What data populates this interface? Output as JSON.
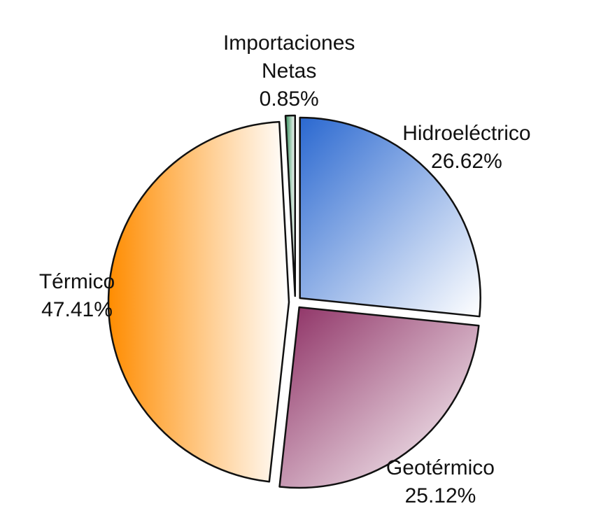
{
  "chart_data": {
    "type": "pie",
    "categories": [
      "Hidroeléctrico",
      "Geotérmico",
      "Térmico",
      "Importaciones Netas"
    ],
    "values": [
      26.62,
      25.12,
      47.41,
      0.85
    ],
    "value_labels": [
      "26.62%",
      "25.12%",
      "47.41%",
      "0.85%"
    ],
    "colors": [
      "#2a68d0",
      "#8c2d62",
      "#ff8c00",
      "#2e8b57"
    ],
    "start_angle": 0,
    "direction": "clockwise",
    "exploded": true
  }
}
